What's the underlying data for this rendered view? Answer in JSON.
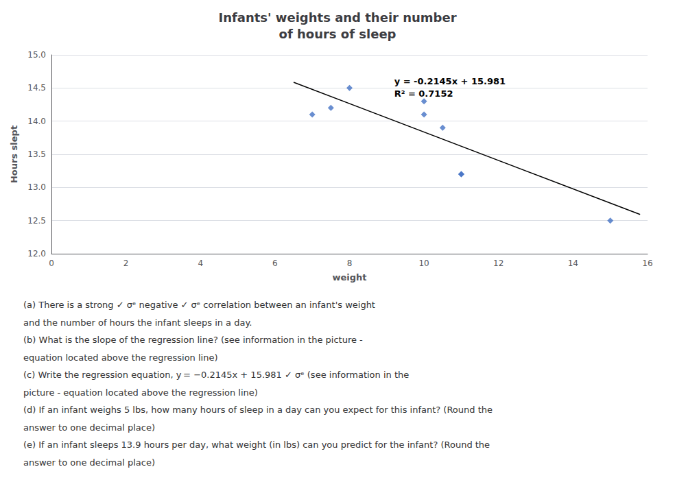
{
  "chart_data": {
    "type": "scatter",
    "title": "Infants' weights and their number\nof hours of sleep",
    "xlabel": "weight",
    "ylabel": "Hours slept",
    "series": [
      {
        "type": "scatter",
        "color": "#4472C4",
        "marker": "diamond",
        "x": [
          7,
          7.5,
          8,
          10,
          10,
          10.5,
          11,
          11,
          15
        ],
        "values": [
          14.1,
          14.2,
          14.5,
          14.3,
          14.1,
          13.9,
          13.2,
          13.2,
          12.5
        ]
      },
      {
        "type": "line",
        "color": "#000000",
        "x": [
          6.5,
          15.8
        ],
        "values": [
          14.58675,
          12.5919
        ]
      }
    ],
    "xlim": [
      0,
      16
    ],
    "ylim": [
      12,
      15
    ],
    "xticks": [
      0,
      2,
      4,
      6,
      8,
      10,
      12,
      14,
      16
    ],
    "yticks": [
      {
        "value": 12,
        "label": "12.0"
      },
      {
        "value": 12.5,
        "label": "12.5"
      },
      {
        "value": 13,
        "label": "13.0"
      },
      {
        "value": 13.5,
        "label": "13.5"
      },
      {
        "value": 14,
        "label": "14.0"
      },
      {
        "value": 14.5,
        "label": "14.5"
      },
      {
        "value": 15,
        "label": "15.0"
      }
    ],
    "grid": "y",
    "annotations": [
      "y = -0.2145x + 15.981\nR² = 0.7152"
    ],
    "caption": [
      "(a) There is a strong ✓ σᵉ negative ✓ σᵉ correlation between an infant's weight",
      "and the number of hours the infant sleeps in a day.",
      "(b) What is the slope of the regression line? (see information in the picture -",
      "equation located above the regression line)",
      "(c) Write the regression equation, y = −0.2145x + 15.981 ✓ σᵉ (see information in the",
      "picture - equation located above the regression line)",
      "(d) If an infant weighs 5 lbs, how many hours of sleep in a day can you expect for this infant? (Round the",
      "answer to one decimal place)",
      "(e) If an infant sleeps 13.9 hours per day, what weight (in lbs) can you predict for the infant? (Round the",
      "answer to one decimal place)"
    ]
  }
}
